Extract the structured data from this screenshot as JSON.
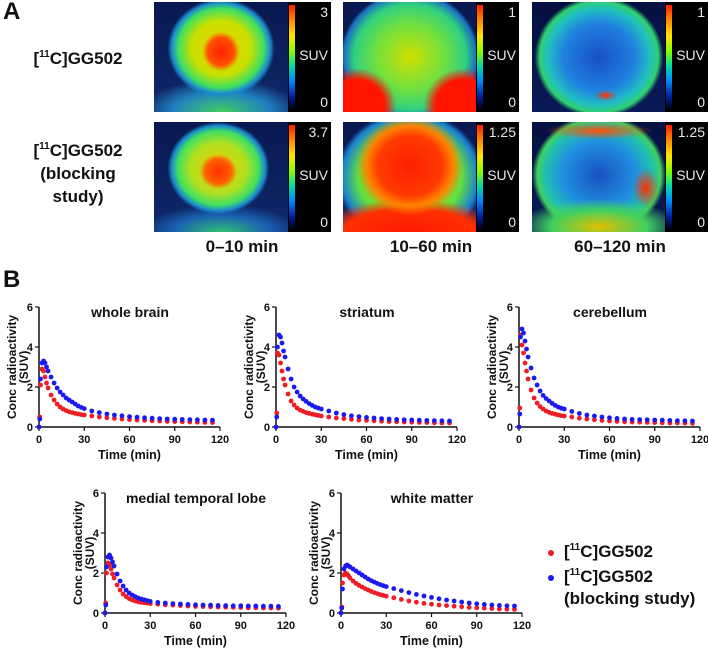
{
  "panel_a": {
    "letter": "A",
    "rows": [
      {
        "label_prefix": "[",
        "label_sup": "11",
        "label_suffix": "C]GG502",
        "label_extra": []
      },
      {
        "label_prefix": "[",
        "label_sup": "11",
        "label_suffix": "C]GG502",
        "label_extra": [
          "(blocking",
          "study)"
        ]
      }
    ],
    "time_labels": [
      "0–10 min",
      "10–60 min",
      "60–120 min"
    ],
    "colorbars": [
      [
        {
          "max": "3",
          "unit": "SUV",
          "min": "0"
        },
        {
          "max": "1",
          "unit": "SUV",
          "min": "0"
        },
        {
          "max": "1",
          "unit": "SUV",
          "min": "0"
        }
      ],
      [
        {
          "max": "3.7",
          "unit": "SUV",
          "min": "0"
        },
        {
          "max": "1.25",
          "unit": "SUV",
          "min": "0"
        },
        {
          "max": "1.25",
          "unit": "SUV",
          "min": "0"
        }
      ]
    ]
  },
  "panel_b": {
    "letter": "B"
  },
  "legend": [
    {
      "prefix": "[",
      "sup": "11",
      "suffix": "C]GG502",
      "extra": "",
      "color": "#ee1c25"
    },
    {
      "prefix": "[",
      "sup": "11",
      "suffix": "C]GG502",
      "extra": "(blocking study)",
      "color": "#1a1aee"
    }
  ],
  "chart_data": {
    "type": "scatter",
    "xlabel": "Time (min)",
    "ylabel": [
      "Conc radioactivity",
      "(SUV)"
    ],
    "xlim": [
      0,
      120
    ],
    "ylim": [
      0,
      6
    ],
    "xticks": [
      "0",
      "30",
      "60",
      "90",
      "120"
    ],
    "yticks": [
      "0",
      "2",
      "4",
      "6"
    ],
    "legend_placement": "bottom-right",
    "x": [
      0,
      0.5,
      1,
      2,
      3,
      4,
      5,
      6,
      8,
      10,
      12,
      14,
      16,
      18,
      20,
      22,
      24,
      26,
      28,
      30,
      35,
      40,
      45,
      50,
      55,
      60,
      65,
      70,
      75,
      80,
      85,
      90,
      95,
      100,
      105,
      110,
      115
    ],
    "series_names": [
      "[11C]GG502",
      "[11C]GG502 (blocking study)"
    ],
    "series_colors": [
      "#ee1c25",
      "#1a1aee"
    ],
    "panels": [
      {
        "title": "whole brain",
        "series": [
          [
            0,
            0.5,
            2.1,
            2.9,
            2.8,
            2.5,
            2.2,
            1.95,
            1.6,
            1.35,
            1.15,
            1.0,
            0.9,
            0.82,
            0.76,
            0.72,
            0.68,
            0.65,
            0.62,
            0.6,
            0.55,
            0.5,
            0.46,
            0.43,
            0.4,
            0.37,
            0.35,
            0.33,
            0.31,
            0.3,
            0.28,
            0.27,
            0.26,
            0.25,
            0.24,
            0.23,
            0.22
          ],
          [
            0,
            0.4,
            2.4,
            3.2,
            3.3,
            3.2,
            3.0,
            2.8,
            2.5,
            2.2,
            1.95,
            1.75,
            1.6,
            1.45,
            1.35,
            1.25,
            1.15,
            1.05,
            0.98,
            0.92,
            0.8,
            0.72,
            0.65,
            0.6,
            0.56,
            0.52,
            0.49,
            0.46,
            0.44,
            0.42,
            0.4,
            0.39,
            0.38,
            0.37,
            0.36,
            0.35,
            0.34
          ]
        ]
      },
      {
        "title": "striatum",
        "series": [
          [
            0,
            0.7,
            3.7,
            3.6,
            3.2,
            2.8,
            2.4,
            2.1,
            1.65,
            1.3,
            1.1,
            0.95,
            0.85,
            0.78,
            0.72,
            0.68,
            0.64,
            0.61,
            0.58,
            0.55,
            0.5,
            0.45,
            0.42,
            0.38,
            0.35,
            0.33,
            0.31,
            0.29,
            0.27,
            0.26,
            0.25,
            0.24,
            0.23,
            0.22,
            0.21,
            0.2,
            0.2
          ],
          [
            0,
            0.5,
            4.0,
            4.6,
            4.5,
            4.2,
            3.8,
            3.5,
            2.9,
            2.4,
            2.0,
            1.75,
            1.55,
            1.4,
            1.28,
            1.17,
            1.08,
            1.0,
            0.95,
            0.9,
            0.8,
            0.7,
            0.62,
            0.56,
            0.52,
            0.48,
            0.45,
            0.42,
            0.4,
            0.38,
            0.36,
            0.35,
            0.34,
            0.33,
            0.32,
            0.31,
            0.3
          ]
        ]
      },
      {
        "title": "cerebellum",
        "series": [
          [
            0,
            0.95,
            4.6,
            4.1,
            3.7,
            3.2,
            2.8,
            2.4,
            1.85,
            1.45,
            1.2,
            1.02,
            0.9,
            0.8,
            0.73,
            0.68,
            0.64,
            0.6,
            0.57,
            0.55,
            0.5,
            0.44,
            0.4,
            0.36,
            0.33,
            0.3,
            0.28,
            0.26,
            0.25,
            0.24,
            0.23,
            0.22,
            0.21,
            0.2,
            0.2,
            0.19,
            0.18
          ],
          [
            0,
            0.65,
            4.5,
            4.9,
            4.7,
            4.3,
            3.9,
            3.5,
            2.95,
            2.45,
            2.1,
            1.8,
            1.58,
            1.42,
            1.3,
            1.18,
            1.08,
            1.0,
            0.94,
            0.9,
            0.78,
            0.68,
            0.6,
            0.55,
            0.5,
            0.46,
            0.43,
            0.4,
            0.38,
            0.37,
            0.36,
            0.35,
            0.34,
            0.33,
            0.32,
            0.31,
            0.3
          ]
        ]
      },
      {
        "title": "medial temporal lobe",
        "series": [
          [
            0,
            0.5,
            2.0,
            2.5,
            2.4,
            2.2,
            1.95,
            1.75,
            1.4,
            1.15,
            0.95,
            0.82,
            0.72,
            0.65,
            0.6,
            0.56,
            0.53,
            0.51,
            0.49,
            0.47,
            0.44,
            0.41,
            0.39,
            0.37,
            0.35,
            0.33,
            0.32,
            0.31,
            0.3,
            0.29,
            0.28,
            0.27,
            0.26,
            0.26,
            0.25,
            0.25,
            0.24
          ],
          [
            0,
            0.4,
            2.3,
            2.8,
            2.9,
            2.75,
            2.55,
            2.35,
            1.95,
            1.6,
            1.35,
            1.15,
            1.0,
            0.9,
            0.82,
            0.75,
            0.7,
            0.66,
            0.62,
            0.58,
            0.53,
            0.5,
            0.47,
            0.45,
            0.43,
            0.41,
            0.4,
            0.39,
            0.38,
            0.37,
            0.36,
            0.36,
            0.35,
            0.35,
            0.34,
            0.34,
            0.33
          ]
        ]
      },
      {
        "title": "white matter",
        "series": [
          [
            0,
            0.3,
            1.5,
            1.9,
            2.0,
            1.95,
            1.85,
            1.75,
            1.6,
            1.48,
            1.38,
            1.3,
            1.22,
            1.15,
            1.08,
            1.02,
            0.97,
            0.92,
            0.88,
            0.84,
            0.76,
            0.68,
            0.6,
            0.54,
            0.48,
            0.44,
            0.4,
            0.37,
            0.34,
            0.31,
            0.28,
            0.26,
            0.24,
            0.22,
            0.2,
            0.19,
            0.18
          ],
          [
            0,
            0.25,
            1.2,
            2.2,
            2.35,
            2.4,
            2.35,
            2.3,
            2.2,
            2.1,
            2.0,
            1.9,
            1.8,
            1.7,
            1.62,
            1.55,
            1.48,
            1.42,
            1.37,
            1.32,
            1.22,
            1.12,
            1.02,
            0.93,
            0.85,
            0.78,
            0.71,
            0.65,
            0.6,
            0.55,
            0.5,
            0.46,
            0.43,
            0.4,
            0.38,
            0.36,
            0.35
          ]
        ]
      }
    ]
  }
}
